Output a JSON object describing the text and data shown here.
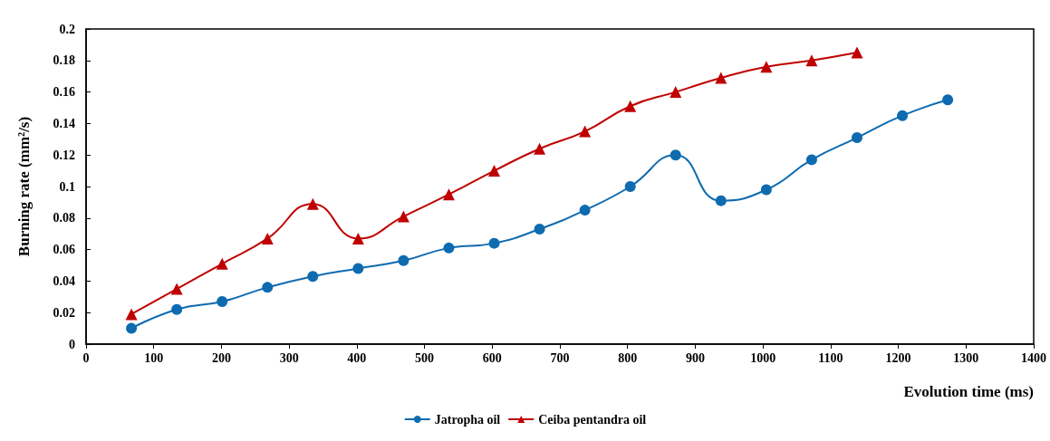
{
  "chart_data": {
    "type": "line",
    "xlabel": "Evolution time (ms)",
    "ylabel": "Burning rate (mm²/s)",
    "xlim": [
      0,
      1400
    ],
    "xticks": [
      0,
      100,
      200,
      300,
      400,
      500,
      600,
      700,
      800,
      900,
      1000,
      1100,
      1200,
      1300,
      1400
    ],
    "ylim": [
      0,
      0.2
    ],
    "yticks": [
      0,
      0.02,
      0.04,
      0.06,
      0.08,
      0.1,
      0.12,
      0.14,
      0.16,
      0.18,
      0.2
    ],
    "grid": false,
    "legend": "bottom",
    "line_style": "solid",
    "series": [
      {
        "name": "Jatropha oil",
        "color": "#0e6bb0",
        "marker": "circle",
        "x": [
          67,
          134,
          201,
          268,
          335,
          402,
          469,
          536,
          603,
          670,
          737,
          804,
          871,
          938,
          1005,
          1072,
          1139,
          1206,
          1273
        ],
        "values": [
          0.01,
          0.022,
          0.027,
          0.036,
          0.043,
          0.048,
          0.053,
          0.061,
          0.064,
          0.073,
          0.085,
          0.1,
          0.12,
          0.091,
          0.098,
          0.117,
          0.131,
          0.145,
          0.155
        ]
      },
      {
        "name": "Ceiba pentandra oil",
        "color": "#c00000",
        "marker": "triangle",
        "x": [
          67,
          134,
          201,
          268,
          335,
          402,
          469,
          536,
          603,
          670,
          737,
          804,
          871,
          938,
          1005,
          1072,
          1139
        ],
        "values": [
          0.019,
          0.035,
          0.051,
          0.067,
          0.089,
          0.067,
          0.081,
          0.095,
          0.11,
          0.124,
          0.135,
          0.151,
          0.16,
          0.169,
          0.176,
          0.18,
          0.185
        ]
      }
    ]
  }
}
